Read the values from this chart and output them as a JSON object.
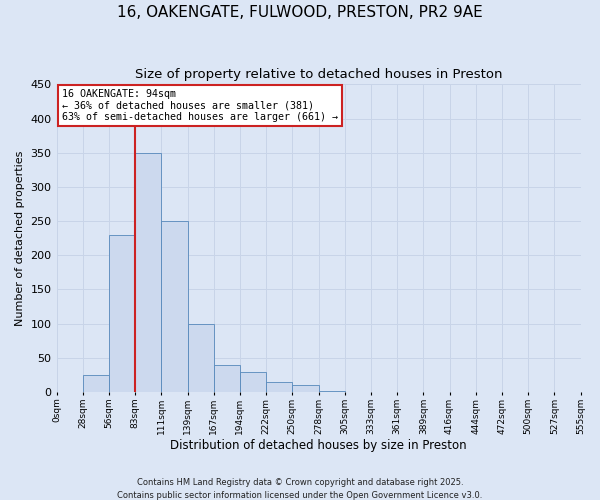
{
  "title": "16, OAKENGATE, FULWOOD, PRESTON, PR2 9AE",
  "subtitle": "Size of property relative to detached houses in Preston",
  "xlabel": "Distribution of detached houses by size in Preston",
  "ylabel": "Number of detached properties",
  "bar_values": [
    0,
    25,
    230,
    350,
    250,
    100,
    40,
    30,
    15,
    10,
    2,
    0,
    0,
    0,
    0,
    0,
    0,
    0,
    0,
    0
  ],
  "bin_labels": [
    "0sqm",
    "28sqm",
    "56sqm",
    "83sqm",
    "111sqm",
    "139sqm",
    "167sqm",
    "194sqm",
    "222sqm",
    "250sqm",
    "278sqm",
    "305sqm",
    "333sqm",
    "361sqm",
    "389sqm",
    "416sqm",
    "444sqm",
    "472sqm",
    "500sqm",
    "527sqm",
    "555sqm"
  ],
  "bar_color": "#ccd9ee",
  "bar_edge_color": "#5588bb",
  "ylim": [
    0,
    450
  ],
  "yticks": [
    0,
    50,
    100,
    150,
    200,
    250,
    300,
    350,
    400,
    450
  ],
  "red_line_x": 3,
  "annotation_title": "16 OAKENGATE: 94sqm",
  "annotation_line1": "← 36% of detached houses are smaller (381)",
  "annotation_line2": "63% of semi-detached houses are larger (661) →",
  "annotation_box_color": "#ffffff",
  "annotation_box_edge": "#cc2222",
  "red_line_color": "#cc2222",
  "grid_color": "#c8d4e8",
  "bg_color": "#dce6f5",
  "plot_bg": "#dce6f5",
  "footer1": "Contains HM Land Registry data © Crown copyright and database right 2025.",
  "footer2": "Contains public sector information licensed under the Open Government Licence v3.0."
}
